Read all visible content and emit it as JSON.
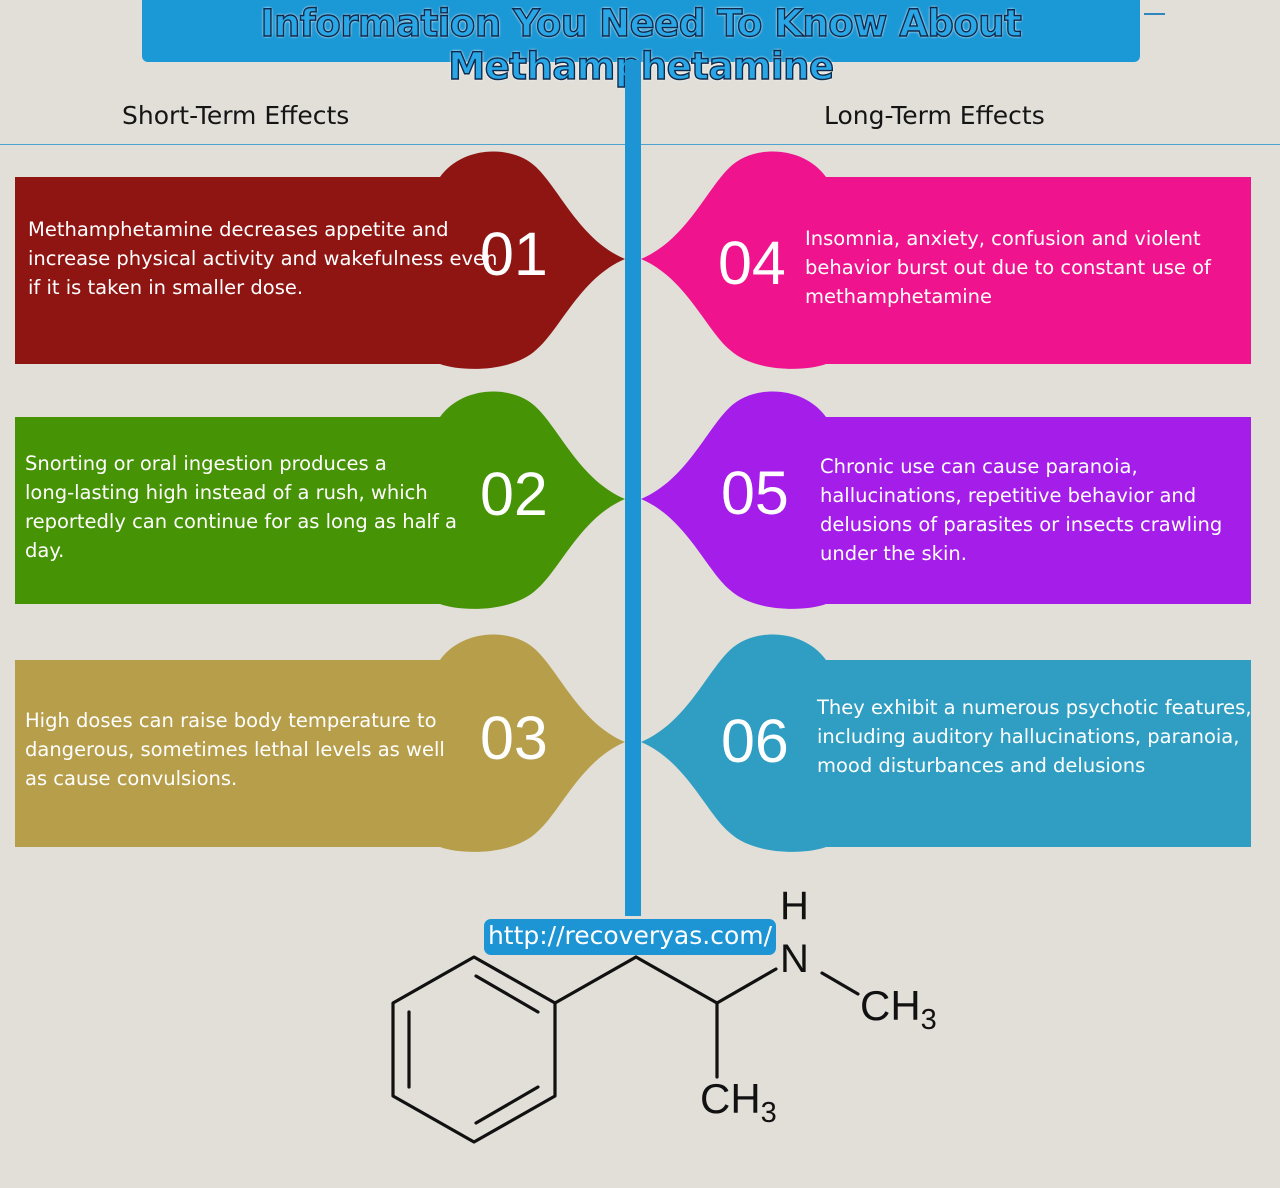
{
  "title": "Information You Need To Know About Methamphetamine",
  "columns": {
    "left": "Short-Term Effects",
    "right": "Long-Term Effects"
  },
  "cards": {
    "c1": {
      "number": "01",
      "color": "#8f1513",
      "lines": [
        "Methamphetamine decreases appetite and",
        "increase physical activity and wakefulness even",
        "if it is taken in smaller dose."
      ]
    },
    "c2": {
      "number": "02",
      "color": "#469305",
      "lines": [
        "Snorting or oral ingestion produces a",
        "long-lasting high instead of a rush, which",
        "reportedly can continue for as long as half a",
        "day."
      ]
    },
    "c3": {
      "number": "03",
      "color": "#b79e4a",
      "lines": [
        "High doses can raise body temperature to",
        "dangerous, sometimes lethal levels as well",
        "as cause convulsions."
      ]
    },
    "c4": {
      "number": "04",
      "color": "#ef148d",
      "lines": [
        "Insomnia, anxiety, confusion and violent",
        "behavior burst out due to constant use of",
        "methamphetamine"
      ]
    },
    "c5": {
      "number": "05",
      "color": "#a41de9",
      "lines": [
        "Chronic use can cause paranoia,",
        "hallucinations, repetitive behavior and",
        "delusions of parasites or insects crawling",
        "under the skin."
      ]
    },
    "c6": {
      "number": "06",
      "color": "#2f9ec2",
      "lines": [
        "They exhibit a numerous psychotic features,",
        "including auditory hallucinations, paranoia,",
        "mood disturbances and delusions"
      ]
    }
  },
  "url": "http://recoveryas.com/",
  "molecule": {
    "h": "H",
    "n": "N",
    "ch3_main": "CH",
    "ch3_sub": "3",
    "ch3_bottom_main": "CH",
    "ch3_bottom_sub": "3"
  }
}
